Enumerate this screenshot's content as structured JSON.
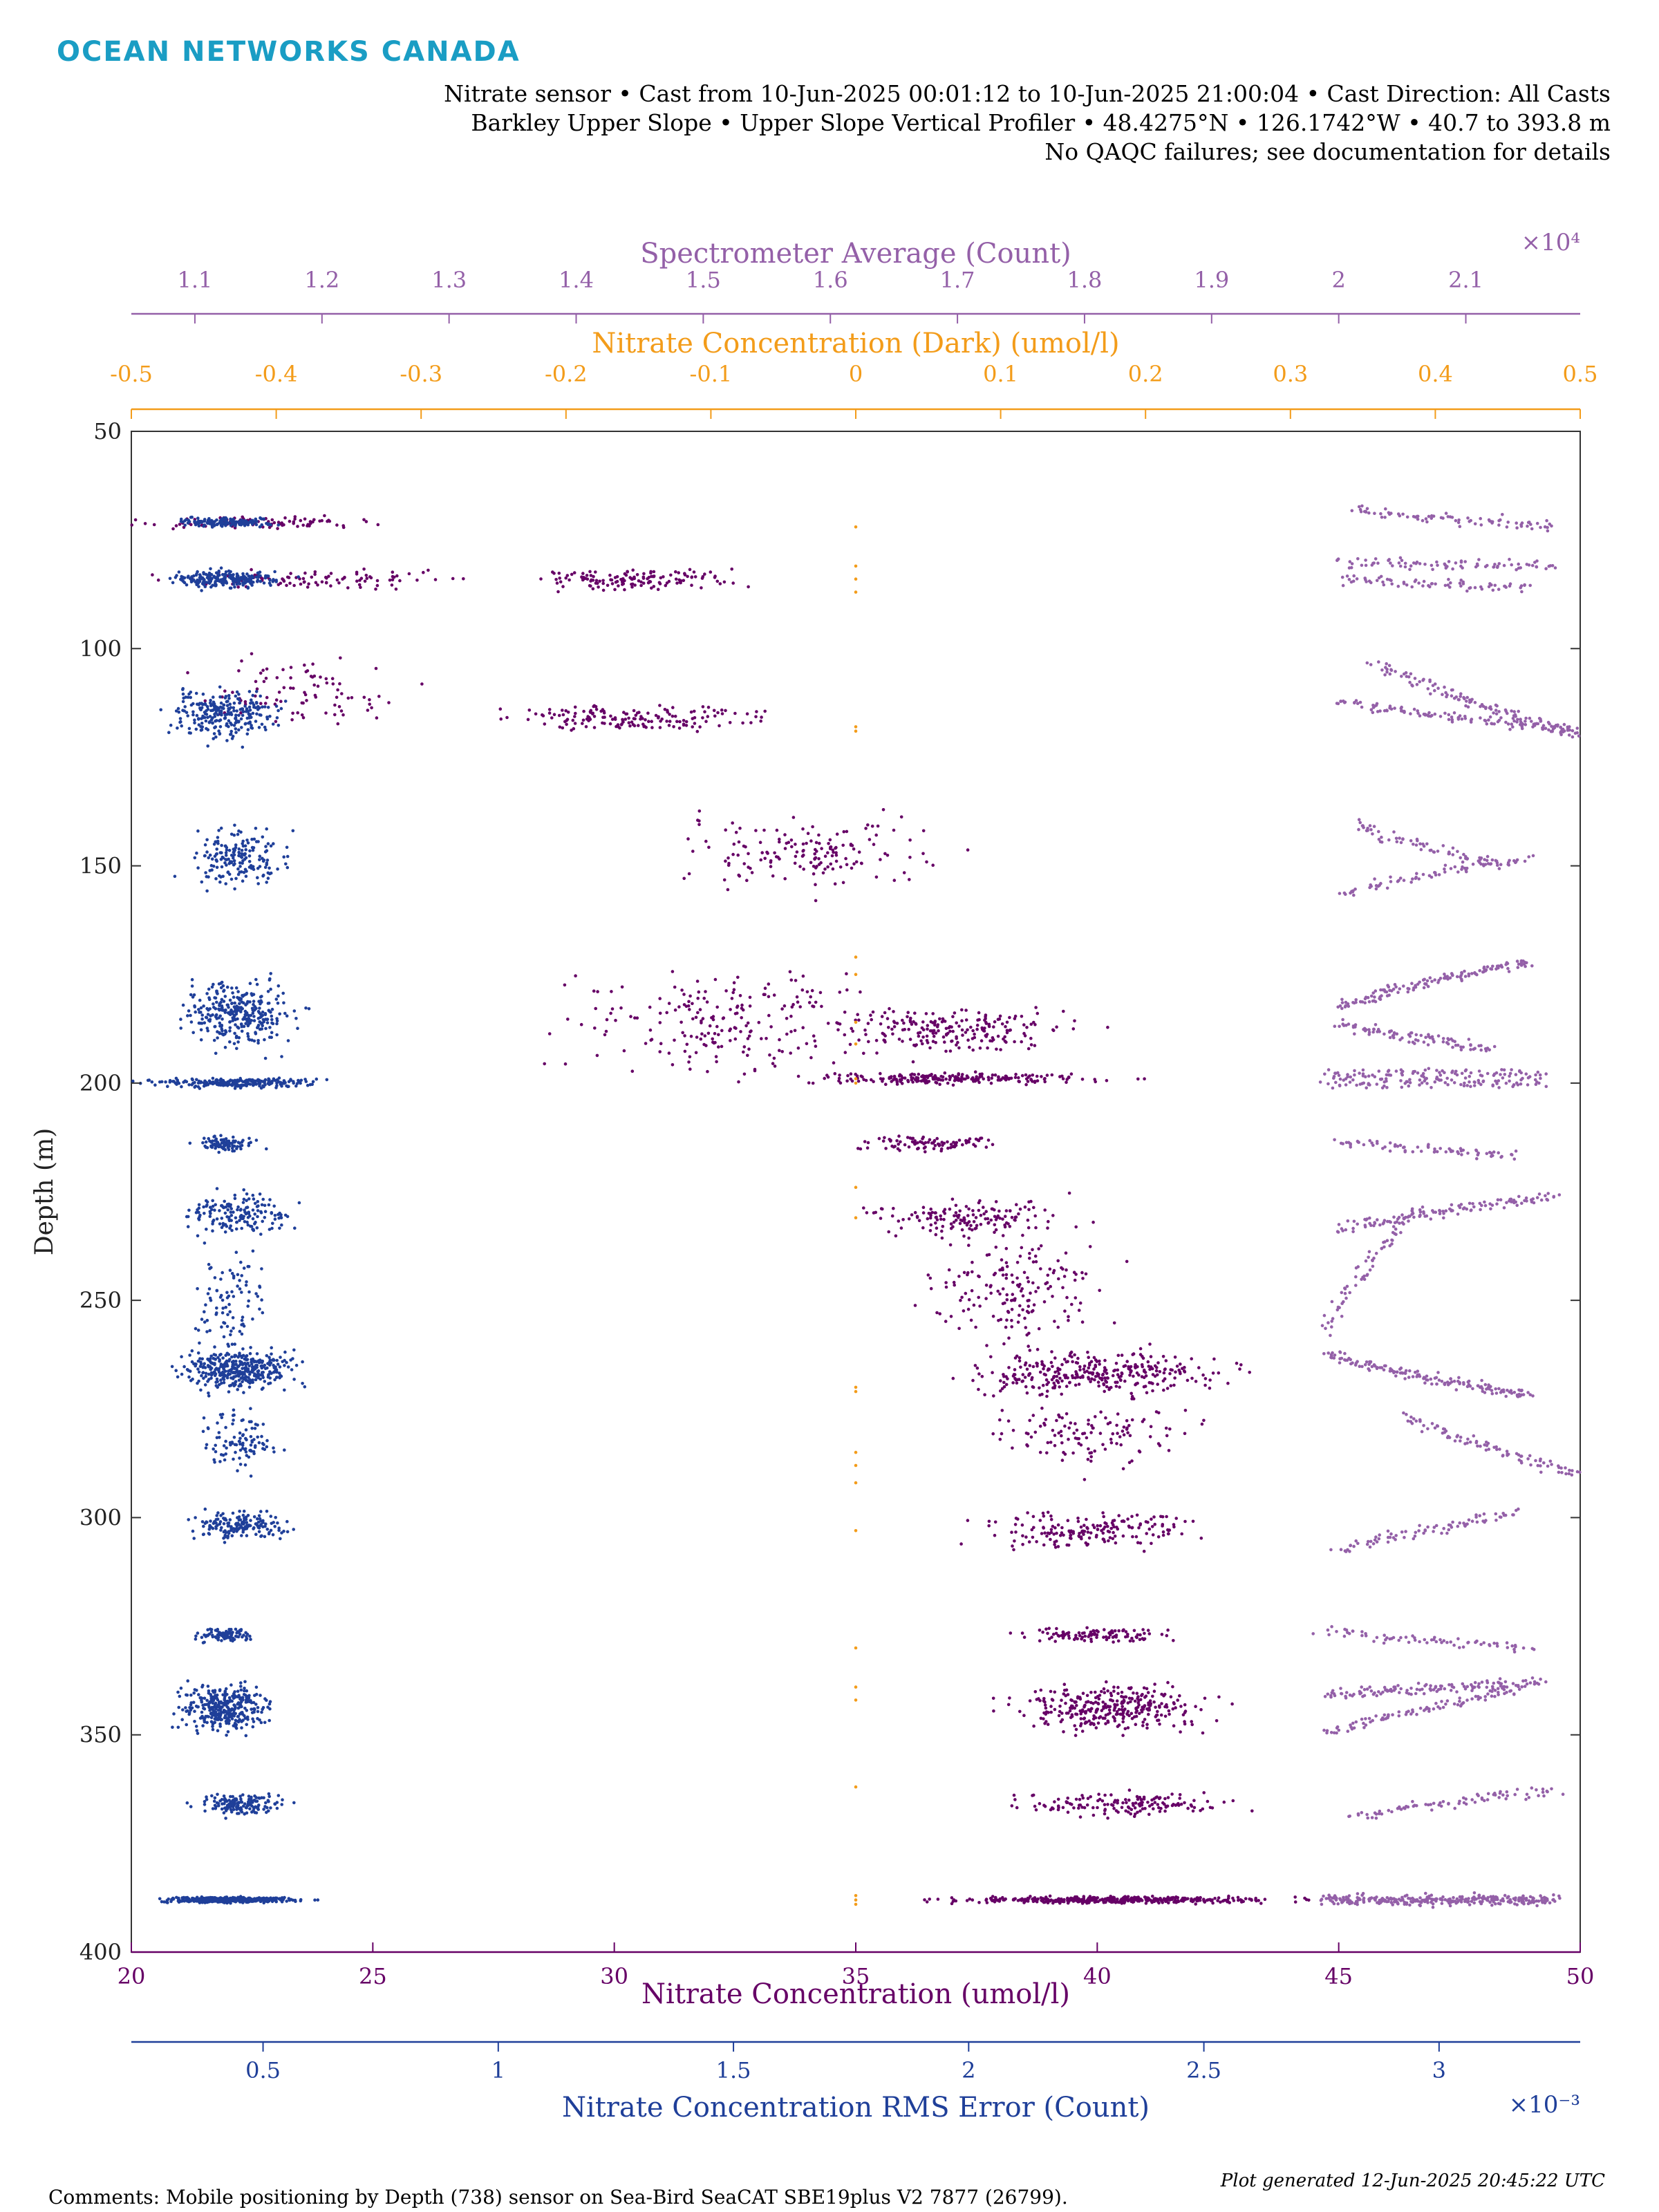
{
  "header": {
    "logo_text": "OCEAN NETWORKS CANADA",
    "line1": "Nitrate sensor • Cast from 10-Jun-2025 00:01:12 to 10-Jun-2025 21:00:04 • Cast Direction: All Casts",
    "line2": "Barkley Upper Slope • Upper Slope Vertical Profiler • 48.4275°N • 126.1742°W • 40.7 to 393.8 m",
    "line3": "No QAQC failures; see documentation for details"
  },
  "footer": {
    "comment": "Comments: Mobile positioning by Depth (738) sensor on Sea-Bird SeaCAT SBE19plus V2 7877 (26799).",
    "generated": "Plot generated 12-Jun-2025 20:45:22 UTC"
  },
  "colors": {
    "nitrate": "#660066",
    "rms": "#1f3f99",
    "dark": "#f39c1a",
    "spectrometer": "#9460a8",
    "axis": "#333333",
    "logo": "#1a9dc4"
  },
  "chart_data": {
    "type": "scatter",
    "y_axis": {
      "label": "Depth (m)",
      "range": [
        50,
        400
      ],
      "reversed": true,
      "ticks": [
        50,
        100,
        150,
        200,
        250,
        300,
        350,
        400
      ],
      "tick_labels": [
        "50",
        "100",
        "150",
        "200",
        "250",
        "300",
        "350",
        "400"
      ]
    },
    "x_axes": [
      {
        "id": "nitrate",
        "label": "Nitrate Concentration (umol/l)",
        "position": "bottom",
        "range": [
          20,
          50
        ],
        "ticks": [
          20,
          25,
          30,
          35,
          40,
          45,
          50
        ],
        "tick_labels": [
          "20",
          "25",
          "30",
          "35",
          "40",
          "45",
          "50"
        ],
        "multiplier": ""
      },
      {
        "id": "rms",
        "label": "Nitrate Concentration RMS Error (Count)",
        "position": "bottom-offset",
        "range": [
          0.22,
          3.3
        ],
        "ticks": [
          0.5,
          1,
          1.5,
          2,
          2.5,
          3
        ],
        "tick_labels": [
          "0.5",
          "1",
          "1.5",
          "2",
          "2.5",
          "3"
        ],
        "multiplier": "×10⁻³"
      },
      {
        "id": "dark",
        "label": "Nitrate Concentration (Dark) (umol/l)",
        "position": "top",
        "range": [
          -0.5,
          0.5
        ],
        "ticks": [
          -0.5,
          -0.4,
          -0.3,
          -0.2,
          -0.1,
          0,
          0.1,
          0.2,
          0.3,
          0.4,
          0.5
        ],
        "tick_labels": [
          "-0.5",
          "-0.4",
          "-0.3",
          "-0.2",
          "-0.1",
          "0",
          "0.1",
          "0.2",
          "0.3",
          "0.4",
          "0.5"
        ],
        "multiplier": ""
      },
      {
        "id": "spectrometer",
        "label": "Spectrometer Average (Count)",
        "position": "top-offset",
        "range": [
          1.05,
          2.19
        ],
        "ticks": [
          1.1,
          1.2,
          1.3,
          1.4,
          1.5,
          1.6,
          1.7,
          1.8,
          1.9,
          2,
          2.1
        ],
        "tick_labels": [
          "1.1",
          "1.2",
          "1.3",
          "1.4",
          "1.5",
          "1.6",
          "1.7",
          "1.8",
          "1.9",
          "2",
          "2.1"
        ],
        "multiplier": "×10⁴"
      }
    ],
    "series": [
      {
        "name": "Nitrate Concentration (umol/l)",
        "axis": "nitrate",
        "color": "#660066",
        "clusters": [
          {
            "depth": 71,
            "x": 22.5,
            "x_spread": 2.5,
            "depth_spread": 1.0,
            "n": 100
          },
          {
            "depth": 84,
            "x": 24.0,
            "x_spread": 3.0,
            "depth_spread": 1.5,
            "n": 100
          },
          {
            "depth": 84,
            "x": 30.3,
            "x_spread": 2.2,
            "depth_spread": 1.8,
            "n": 140
          },
          {
            "depth": 110,
            "x": 23.5,
            "x_spread": 2.2,
            "depth_spread": 6.0,
            "n": 90
          },
          {
            "depth": 116,
            "x": 30.5,
            "x_spread": 2.5,
            "depth_spread": 2.5,
            "n": 160
          },
          {
            "depth": 147,
            "x": 34.0,
            "x_spread": 2.8,
            "depth_spread": 6.0,
            "n": 160
          },
          {
            "depth": 186,
            "x": 32.5,
            "x_spread": 3.5,
            "depth_spread": 9.0,
            "n": 220
          },
          {
            "depth": 188,
            "x": 37.0,
            "x_spread": 2.5,
            "depth_spread": 4.0,
            "n": 200
          },
          {
            "depth": 199,
            "x": 37.0,
            "x_spread": 3.2,
            "depth_spread": 1.0,
            "n": 220
          },
          {
            "depth": 214,
            "x": 36.5,
            "x_spread": 1.5,
            "depth_spread": 1.3,
            "n": 90
          },
          {
            "depth": 231,
            "x": 37.3,
            "x_spread": 2.0,
            "depth_spread": 3.0,
            "n": 150
          },
          {
            "depth": 248,
            "x": 38.3,
            "x_spread": 1.7,
            "depth_spread": 9.0,
            "n": 170
          },
          {
            "depth": 267,
            "x": 40.0,
            "x_spread": 2.8,
            "depth_spread": 4.0,
            "n": 320
          },
          {
            "depth": 281,
            "x": 40.0,
            "x_spread": 2.0,
            "depth_spread": 6.0,
            "n": 120
          },
          {
            "depth": 303,
            "x": 39.8,
            "x_spread": 2.2,
            "depth_spread": 3.0,
            "n": 180
          },
          {
            "depth": 327,
            "x": 40.0,
            "x_spread": 1.5,
            "depth_spread": 1.3,
            "n": 100
          },
          {
            "depth": 344,
            "x": 40.3,
            "x_spread": 2.0,
            "depth_spread": 4.0,
            "n": 320
          },
          {
            "depth": 366,
            "x": 40.5,
            "x_spread": 2.2,
            "depth_spread": 2.0,
            "n": 150
          },
          {
            "depth": 388,
            "x": 40.5,
            "x_spread": 3.5,
            "depth_spread": 0.6,
            "n": 420
          }
        ]
      },
      {
        "name": "Nitrate Concentration RMS Error (Count)",
        "axis": "rms",
        "color": "#1f3f99",
        "clusters": [
          {
            "depth": 71,
            "x": 0.42,
            "x_spread": 0.1,
            "depth_spread": 0.8,
            "n": 140
          },
          {
            "depth": 84,
            "x": 0.42,
            "x_spread": 0.12,
            "depth_spread": 1.5,
            "n": 220
          },
          {
            "depth": 115,
            "x": 0.42,
            "x_spread": 0.12,
            "depth_spread": 4.5,
            "n": 260
          },
          {
            "depth": 148,
            "x": 0.45,
            "x_spread": 0.1,
            "depth_spread": 5.0,
            "n": 180
          },
          {
            "depth": 184,
            "x": 0.45,
            "x_spread": 0.12,
            "depth_spread": 5.5,
            "n": 320
          },
          {
            "depth": 200,
            "x": 0.45,
            "x_spread": 0.18,
            "depth_spread": 0.8,
            "n": 240
          },
          {
            "depth": 214,
            "x": 0.42,
            "x_spread": 0.07,
            "depth_spread": 1.3,
            "n": 90
          },
          {
            "depth": 230,
            "x": 0.45,
            "x_spread": 0.11,
            "depth_spread": 3.5,
            "n": 160
          },
          {
            "depth": 250,
            "x": 0.43,
            "x_spread": 0.08,
            "depth_spread": 8.0,
            "n": 90
          },
          {
            "depth": 266,
            "x": 0.45,
            "x_spread": 0.12,
            "depth_spread": 3.5,
            "n": 380
          },
          {
            "depth": 282,
            "x": 0.45,
            "x_spread": 0.09,
            "depth_spread": 5.0,
            "n": 100
          },
          {
            "depth": 302,
            "x": 0.45,
            "x_spread": 0.1,
            "depth_spread": 2.5,
            "n": 160
          },
          {
            "depth": 327,
            "x": 0.42,
            "x_spread": 0.06,
            "depth_spread": 1.2,
            "n": 90
          },
          {
            "depth": 344,
            "x": 0.42,
            "x_spread": 0.1,
            "depth_spread": 4.0,
            "n": 340
          },
          {
            "depth": 366,
            "x": 0.45,
            "x_spread": 0.09,
            "depth_spread": 1.8,
            "n": 150
          },
          {
            "depth": 388,
            "x": 0.43,
            "x_spread": 0.15,
            "depth_spread": 0.5,
            "n": 380
          }
        ]
      },
      {
        "name": "Nitrate Concentration (Dark) (umol/l)",
        "axis": "dark",
        "color": "#f39c1a",
        "points": [
          {
            "x": 0,
            "depth": 72
          },
          {
            "x": 0,
            "depth": 81
          },
          {
            "x": 0,
            "depth": 84
          },
          {
            "x": 0,
            "depth": 87
          },
          {
            "x": 0,
            "depth": 118
          },
          {
            "x": 0,
            "depth": 119
          },
          {
            "x": 0,
            "depth": 171
          },
          {
            "x": 0,
            "depth": 175
          },
          {
            "x": 0,
            "depth": 186
          },
          {
            "x": 0,
            "depth": 191
          },
          {
            "x": 0,
            "depth": 199
          },
          {
            "x": 0,
            "depth": 200
          },
          {
            "x": 0,
            "depth": 224
          },
          {
            "x": 0,
            "depth": 231
          },
          {
            "x": 0,
            "depth": 270
          },
          {
            "x": 0,
            "depth": 271
          },
          {
            "x": 0,
            "depth": 285
          },
          {
            "x": 0,
            "depth": 288
          },
          {
            "x": 0,
            "depth": 292
          },
          {
            "x": 0,
            "depth": 303
          },
          {
            "x": 0,
            "depth": 330
          },
          {
            "x": 0,
            "depth": 339
          },
          {
            "x": 0,
            "depth": 342
          },
          {
            "x": 0,
            "depth": 362
          },
          {
            "x": 0,
            "depth": 387
          },
          {
            "x": 0,
            "depth": 388
          },
          {
            "x": 0,
            "depth": 389
          }
        ]
      },
      {
        "name": "Spectrometer Average (Count)",
        "axis": "spectrometer",
        "color": "#9460a8",
        "tracks": [
          {
            "x0": 2.01,
            "d0": 68,
            "x1": 2.17,
            "d1": 72,
            "n": 80
          },
          {
            "x0": 2.0,
            "d0": 80,
            "x1": 2.17,
            "d1": 81,
            "n": 80
          },
          {
            "x0": 2.0,
            "d0": 84,
            "x1": 2.15,
            "d1": 86,
            "n": 70
          },
          {
            "x0": 2.03,
            "d0": 103,
            "x1": 2.19,
            "d1": 120,
            "n": 120
          },
          {
            "x0": 2.0,
            "d0": 112,
            "x1": 2.19,
            "d1": 119,
            "n": 120
          },
          {
            "x0": 2.01,
            "d0": 140,
            "x1": 2.13,
            "d1": 150,
            "n": 70
          },
          {
            "x0": 2.0,
            "d0": 157,
            "x1": 2.15,
            "d1": 148,
            "n": 70
          },
          {
            "x0": 2.0,
            "d0": 183,
            "x1": 2.15,
            "d1": 172,
            "n": 140
          },
          {
            "x0": 2.0,
            "d0": 186,
            "x1": 2.12,
            "d1": 192,
            "n": 90
          },
          {
            "x0": 1.99,
            "d0": 198,
            "x1": 2.16,
            "d1": 198,
            "n": 90
          },
          {
            "x0": 1.99,
            "d0": 200,
            "x1": 2.16,
            "d1": 200,
            "n": 90
          },
          {
            "x0": 2.0,
            "d0": 213,
            "x1": 2.14,
            "d1": 217,
            "n": 70
          },
          {
            "x0": 2.0,
            "d0": 234,
            "x1": 2.17,
            "d1": 226,
            "n": 120
          },
          {
            "x0": 1.99,
            "d0": 258,
            "x1": 2.06,
            "d1": 229,
            "n": 70
          },
          {
            "x0": 1.99,
            "d0": 262,
            "x1": 2.15,
            "d1": 272,
            "n": 160
          },
          {
            "x0": 2.05,
            "d0": 276,
            "x1": 2.19,
            "d1": 290,
            "n": 90
          },
          {
            "x0": 2.0,
            "d0": 308,
            "x1": 2.14,
            "d1": 299,
            "n": 80
          },
          {
            "x0": 1.99,
            "d0": 326,
            "x1": 2.15,
            "d1": 330,
            "n": 70
          },
          {
            "x0": 1.99,
            "d0": 341,
            "x1": 2.16,
            "d1": 338,
            "n": 130
          },
          {
            "x0": 1.99,
            "d0": 350,
            "x1": 2.14,
            "d1": 340,
            "n": 90
          },
          {
            "x0": 2.01,
            "d0": 369,
            "x1": 2.17,
            "d1": 363,
            "n": 80
          },
          {
            "x0": 1.99,
            "d0": 388,
            "x1": 2.17,
            "d1": 388,
            "n": 300
          }
        ]
      }
    ]
  }
}
